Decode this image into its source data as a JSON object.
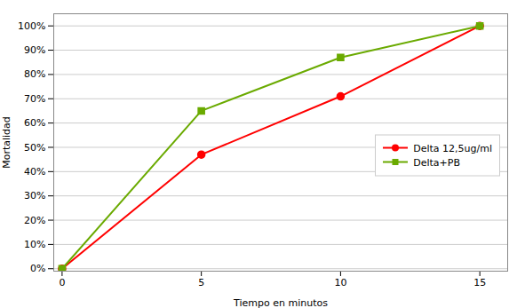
{
  "chart_data": {
    "type": "line",
    "xlabel": "Tiempo en minutos",
    "ylabel": "Mortalidad",
    "x": [
      0,
      5,
      10,
      15
    ],
    "series": [
      {
        "name": "Delta 12,5ug/ml",
        "color": "#FF0000",
        "marker": "circle",
        "values": [
          0,
          0.47,
          0.71,
          1.0
        ]
      },
      {
        "name": "Delta+PB",
        "color": "#6AAA00",
        "marker": "square",
        "values": [
          0,
          0.65,
          0.87,
          1.0
        ]
      }
    ],
    "xlim": [
      -0.3,
      16.0
    ],
    "ylim": [
      -0.01,
      1.05
    ],
    "xticks": [
      0,
      5,
      10,
      15
    ],
    "yticks": [
      {
        "value": 0.0,
        "label": "0%"
      },
      {
        "value": 0.1,
        "label": "10%"
      },
      {
        "value": 0.2,
        "label": "20%"
      },
      {
        "value": 0.3,
        "label": "30%"
      },
      {
        "value": 0.4,
        "label": "40%"
      },
      {
        "value": 0.5,
        "label": "50%"
      },
      {
        "value": 0.6,
        "label": "60%"
      },
      {
        "value": 0.7,
        "label": "70%"
      },
      {
        "value": 0.8,
        "label": "80%"
      },
      {
        "value": 0.9,
        "label": "90%"
      },
      {
        "value": 1.0,
        "label": "100%"
      }
    ],
    "grid": true,
    "legend": "right"
  }
}
